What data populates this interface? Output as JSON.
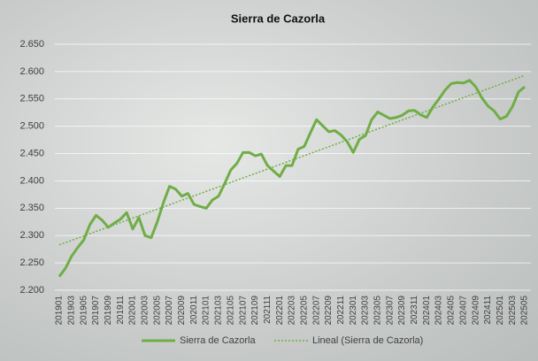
{
  "chart_data": {
    "type": "line",
    "title": "Sierra de Cazorla",
    "categories": [
      "201901",
      null,
      "201903",
      null,
      "201905",
      null,
      "201907",
      null,
      "201909",
      null,
      "201911",
      null,
      "202001",
      null,
      "202003",
      null,
      "202005",
      null,
      "202007",
      null,
      "202009",
      null,
      "202011",
      null,
      "202101",
      null,
      "202103",
      null,
      "202105",
      null,
      "202107",
      null,
      "202109",
      null,
      "202111",
      null,
      "202201",
      null,
      "202203",
      null,
      "202205",
      null,
      "202207",
      null,
      "202209",
      null,
      "202211",
      null,
      "202301",
      null,
      "202303",
      null,
      "202305",
      null,
      "202307",
      null,
      "202309",
      null,
      "202311",
      null,
      "202401",
      null,
      "202403",
      null,
      "202405",
      null,
      "202407",
      null,
      "202409",
      null,
      "202411",
      null,
      "202501",
      null,
      "202503",
      null,
      "202505"
    ],
    "series": [
      {
        "name": "Sierra de Cazorla",
        "color": "#70ad47",
        "values": [
          2225,
          2240,
          2262,
          2278,
          2292,
          2320,
          2337,
          2328,
          2315,
          2323,
          2330,
          2342,
          2312,
          2333,
          2300,
          2296,
          2325,
          2360,
          2390,
          2385,
          2372,
          2377,
          2357,
          2353,
          2350,
          2365,
          2372,
          2395,
          2420,
          2432,
          2452,
          2452,
          2446,
          2449,
          2428,
          2418,
          2408,
          2428,
          2428,
          2458,
          2463,
          2488,
          2512,
          2501,
          2490,
          2492,
          2484,
          2472,
          2452,
          2476,
          2483,
          2512,
          2526,
          2520,
          2514,
          2516,
          2520,
          2528,
          2529,
          2521,
          2516,
          2535,
          2550,
          2566,
          2578,
          2580,
          2579,
          2584,
          2572,
          2552,
          2537,
          2528,
          2513,
          2518,
          2536,
          2563,
          2572
        ]
      }
    ],
    "trend": {
      "name": "Lineal (Sierra de Cazorla)",
      "color": "#70ad47",
      "values": [
        2283,
        2593
      ]
    },
    "ylim": [
      2200,
      2650
    ],
    "yticks": [
      {
        "value": 2200,
        "label": "2.200"
      },
      {
        "value": 2250,
        "label": "2.250"
      },
      {
        "value": 2300,
        "label": "2.300"
      },
      {
        "value": 2350,
        "label": "2.350"
      },
      {
        "value": 2400,
        "label": "2.400"
      },
      {
        "value": 2450,
        "label": "2.450"
      },
      {
        "value": 2500,
        "label": "2.500"
      },
      {
        "value": 2550,
        "label": "2.550"
      },
      {
        "value": 2600,
        "label": "2.600"
      },
      {
        "value": 2650,
        "label": "2.650"
      }
    ],
    "grid": true
  }
}
